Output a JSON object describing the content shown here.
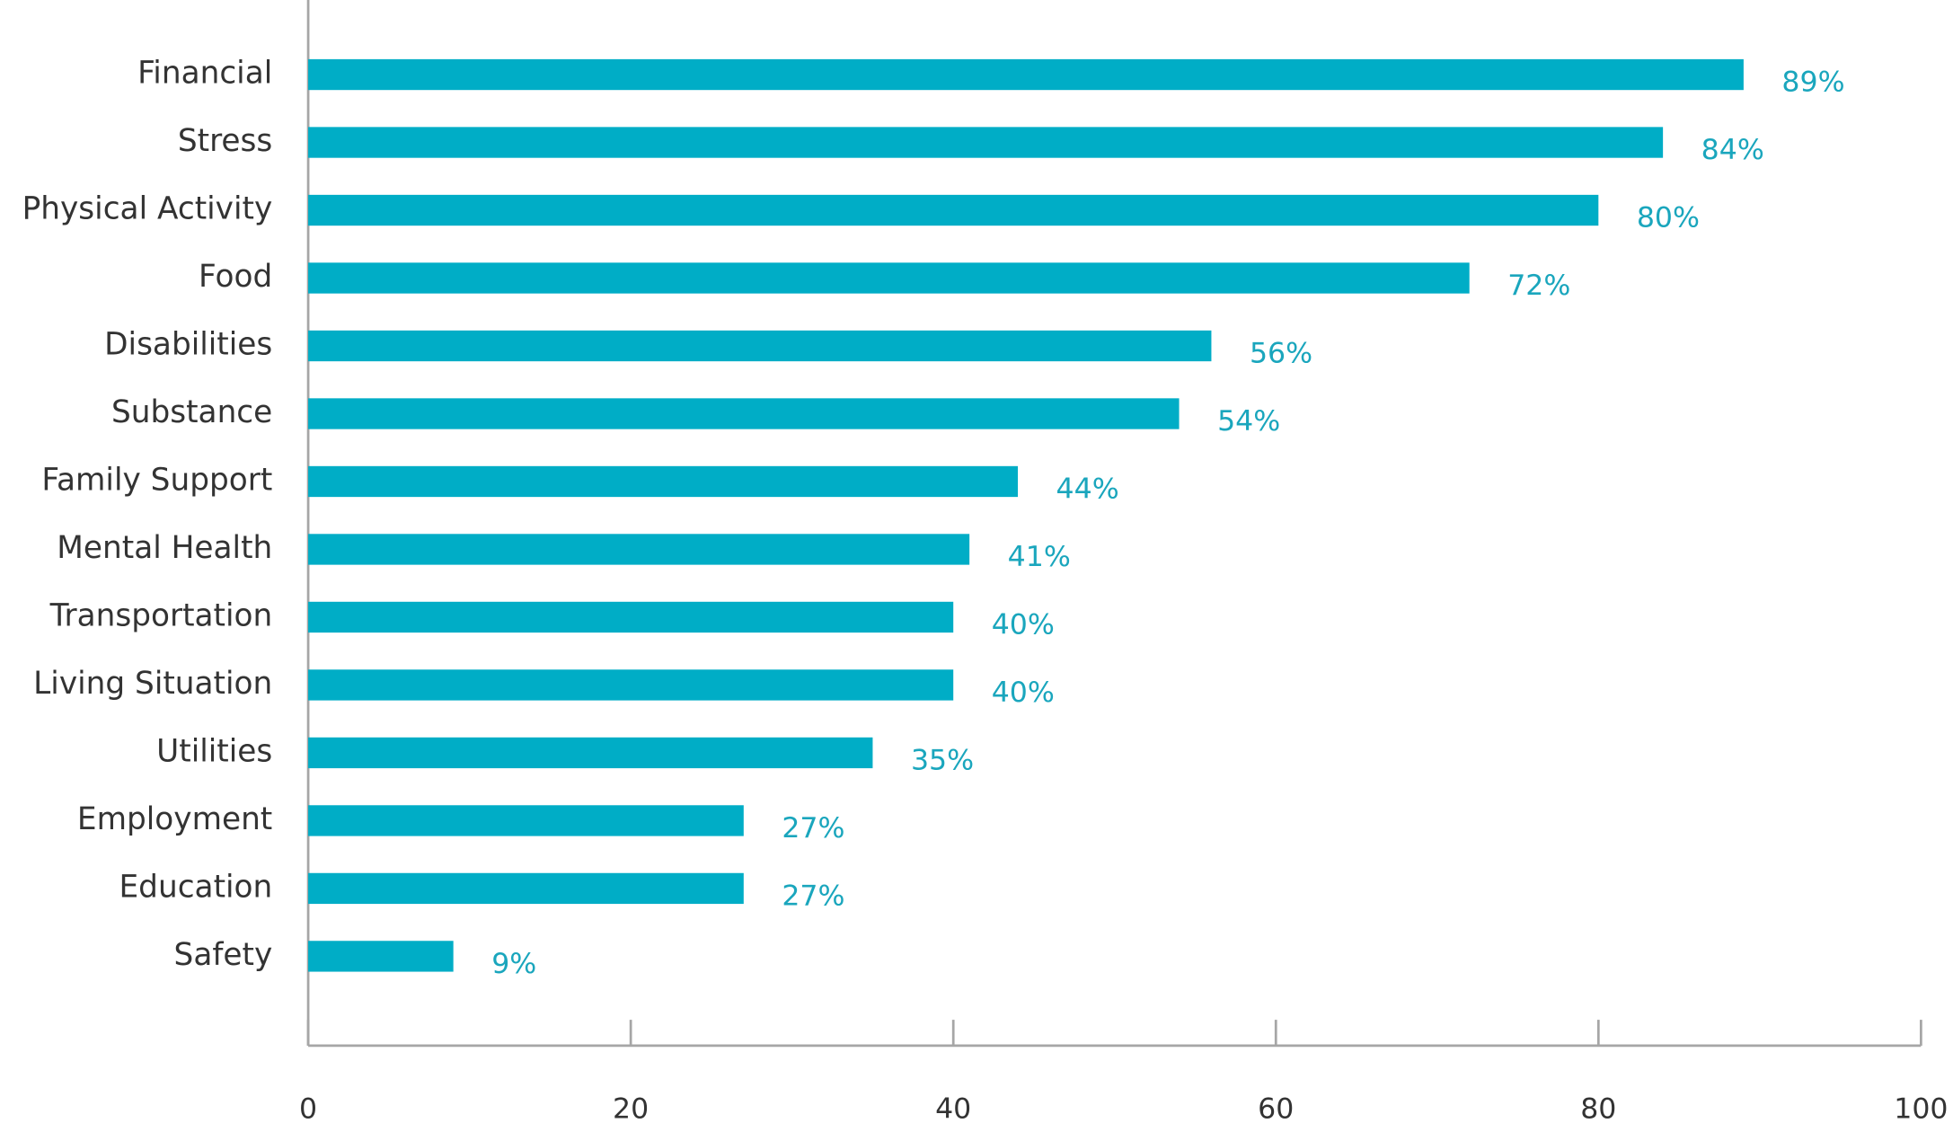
{
  "chart_data": {
    "type": "bar",
    "orientation": "horizontal",
    "categories": [
      "Financial",
      "Stress",
      "Physical Activity",
      "Food",
      "Disabilities",
      "Substance",
      "Family Support",
      "Mental Health",
      "Transportation",
      "Living Situation",
      "Utilities",
      "Employment",
      "Education",
      "Safety"
    ],
    "values": [
      89,
      84,
      80,
      72,
      56,
      54,
      44,
      41,
      40,
      40,
      35,
      27,
      27,
      9
    ],
    "value_labels": [
      "89%",
      "84%",
      "80%",
      "72%",
      "56%",
      "54%",
      "44%",
      "41%",
      "40%",
      "40%",
      "35%",
      "27%",
      "27%",
      "9%"
    ],
    "color": "#00adc6",
    "xlim": [
      0,
      100
    ],
    "xticks": [
      0,
      20,
      40,
      60,
      80,
      100
    ]
  }
}
